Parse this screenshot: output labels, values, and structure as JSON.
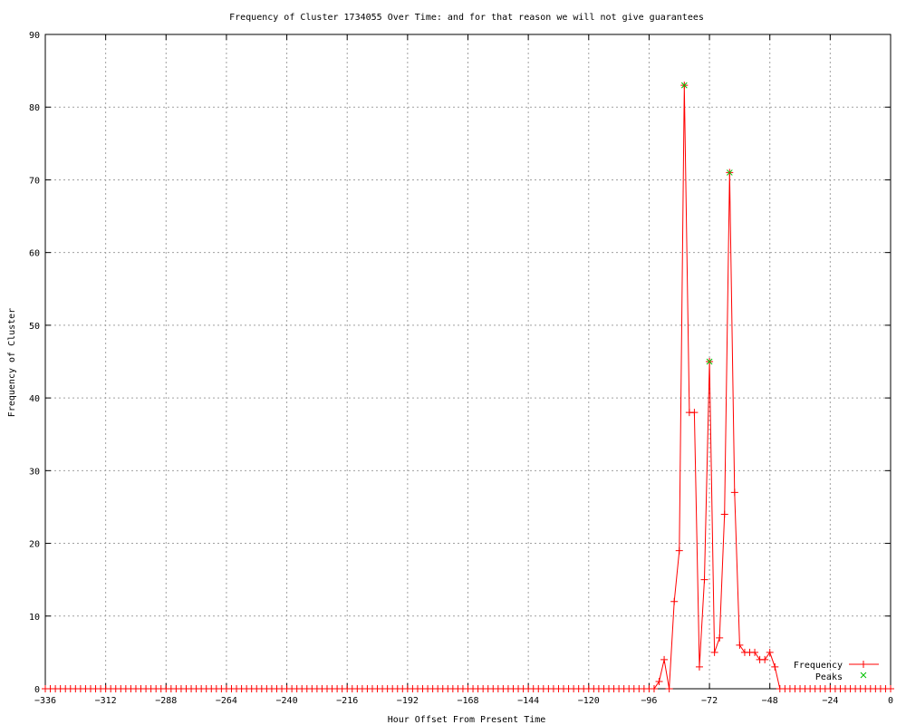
{
  "chart_data": {
    "type": "line",
    "title": "Frequency of Cluster 1734055 Over Time: and for that reason we will not give guarantees",
    "xlabel": "Hour Offset From Present Time",
    "ylabel": "Frequency of Cluster",
    "xlim": [
      -336,
      0
    ],
    "ylim": [
      0,
      90
    ],
    "xticks": [
      -336,
      -312,
      -288,
      -264,
      -240,
      -216,
      -192,
      -168,
      -144,
      -120,
      -96,
      -72,
      -48,
      -24,
      0
    ],
    "yticks": [
      0,
      10,
      20,
      30,
      40,
      50,
      60,
      70,
      80,
      90
    ],
    "grid": true,
    "legend_position": "bottom-right",
    "series": [
      {
        "name": "Frequency",
        "color": "#ff0000",
        "marker": "plus",
        "x": [
          -336,
          -334,
          -332,
          -330,
          -328,
          -326,
          -324,
          -322,
          -320,
          -318,
          -316,
          -314,
          -312,
          -310,
          -308,
          -306,
          -304,
          -302,
          -300,
          -298,
          -296,
          -294,
          -292,
          -290,
          -288,
          -286,
          -284,
          -282,
          -280,
          -278,
          -276,
          -274,
          -272,
          -270,
          -268,
          -266,
          -264,
          -262,
          -260,
          -258,
          -256,
          -254,
          -252,
          -250,
          -248,
          -246,
          -244,
          -242,
          -240,
          -238,
          -236,
          -234,
          -232,
          -230,
          -228,
          -226,
          -224,
          -222,
          -220,
          -218,
          -216,
          -214,
          -212,
          -210,
          -208,
          -206,
          -204,
          -202,
          -200,
          -198,
          -196,
          -194,
          -192,
          -190,
          -188,
          -186,
          -184,
          -182,
          -180,
          -178,
          -176,
          -174,
          -172,
          -170,
          -168,
          -166,
          -164,
          -162,
          -160,
          -158,
          -156,
          -154,
          -152,
          -150,
          -148,
          -146,
          -144,
          -142,
          -140,
          -138,
          -136,
          -134,
          -132,
          -130,
          -128,
          -126,
          -124,
          -122,
          -120,
          -118,
          -116,
          -114,
          -112,
          -110,
          -108,
          -106,
          -104,
          -102,
          -100,
          -98,
          -96,
          -94,
          -92,
          -90,
          -88,
          -86,
          -84,
          -82,
          -80,
          -78,
          -76,
          -74,
          -72,
          -70,
          -68,
          -66,
          -64,
          -62,
          -60,
          -58,
          -56,
          -54,
          -52,
          -50,
          -48,
          -46,
          -44,
          -42,
          -40,
          -38,
          -36,
          -34,
          -32,
          -30,
          -28,
          -26,
          -24,
          -22,
          -20,
          -18,
          -16,
          -14,
          -12,
          -10,
          -8,
          -6,
          -4,
          -2,
          0
        ],
        "y": [
          0,
          0,
          0,
          0,
          0,
          0,
          0,
          0,
          0,
          0,
          0,
          0,
          0,
          0,
          0,
          0,
          0,
          0,
          0,
          0,
          0,
          0,
          0,
          0,
          0,
          0,
          0,
          0,
          0,
          0,
          0,
          0,
          0,
          0,
          0,
          0,
          0,
          0,
          0,
          0,
          0,
          0,
          0,
          0,
          0,
          0,
          0,
          0,
          0,
          0,
          0,
          0,
          0,
          0,
          0,
          0,
          0,
          0,
          0,
          0,
          0,
          0,
          0,
          0,
          0,
          0,
          0,
          0,
          0,
          0,
          0,
          0,
          0,
          0,
          0,
          0,
          0,
          0,
          0,
          0,
          0,
          0,
          0,
          0,
          0,
          0,
          0,
          0,
          0,
          0,
          0,
          0,
          0,
          0,
          0,
          0,
          0,
          0,
          0,
          0,
          0,
          0,
          0,
          0,
          0,
          0,
          0,
          0,
          0,
          0,
          0,
          0,
          0,
          0,
          0,
          0,
          0,
          0,
          0,
          0,
          0,
          0,
          1,
          4,
          0,
          12,
          19,
          83,
          38,
          38,
          3,
          15,
          45,
          5,
          7,
          24,
          71,
          27,
          6,
          5,
          5,
          5,
          4,
          4,
          5,
          3,
          0,
          0,
          0,
          0,
          0,
          0,
          0,
          0,
          0,
          0,
          0,
          0,
          0,
          0,
          0,
          0,
          0,
          0,
          0,
          0,
          0,
          0,
          0
        ]
      },
      {
        "name": "Peaks",
        "color": "#00c000",
        "marker": "cross",
        "x": [
          -82,
          -72,
          -64
        ],
        "y": [
          83,
          45,
          71
        ]
      }
    ]
  }
}
